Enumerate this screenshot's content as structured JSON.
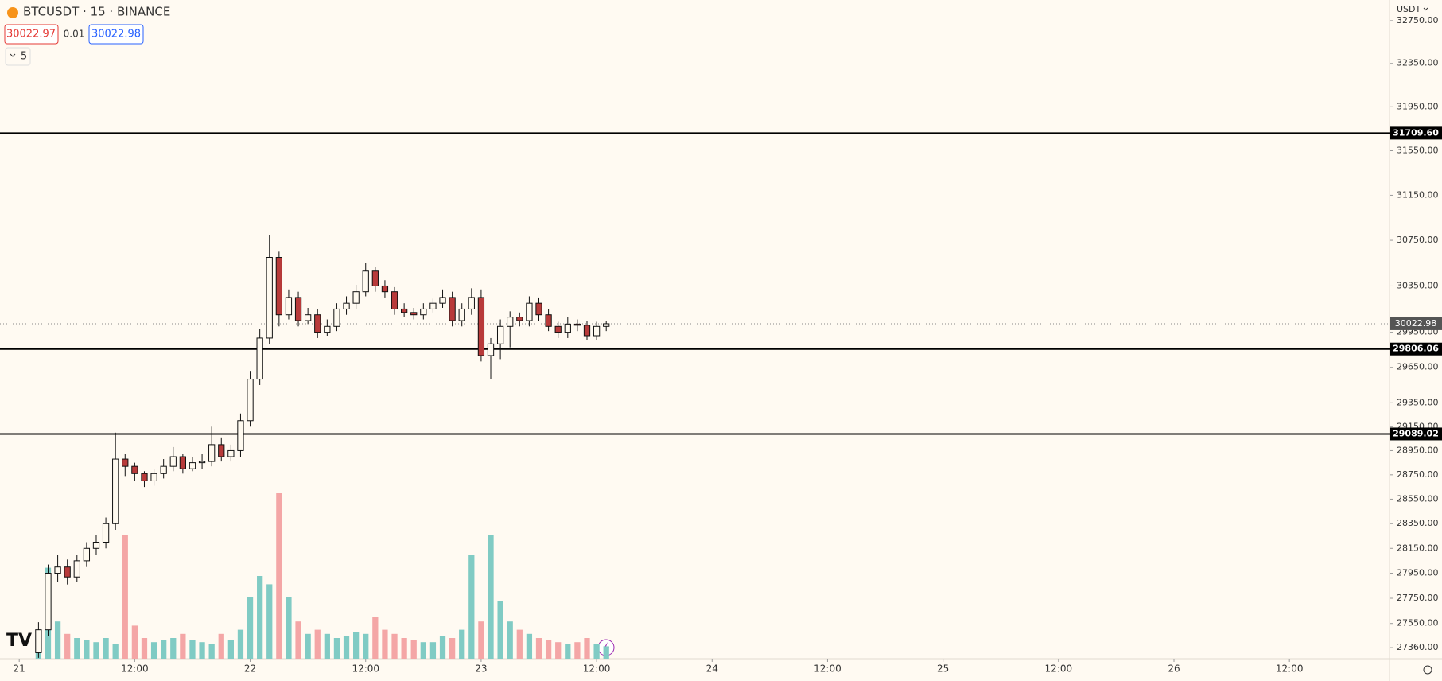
{
  "header": {
    "symbol": "BTCUSDT · 15 · BINANCE",
    "sell": "30022.97",
    "spread": "0.01",
    "buy": "30022.98",
    "indicators": "5",
    "currency": "USDT"
  },
  "chart_data": {
    "type": "candlestick",
    "log_scale": true,
    "x": [
      "21 02:00",
      "21 03:00",
      "21 04:00",
      "21 05:00",
      "21 06:00",
      "21 07:00",
      "21 08:00",
      "21 09:00",
      "21 10:00",
      "21 11:00",
      "21 12:00",
      "21 13:00",
      "21 14:00",
      "21 15:00",
      "21 16:00",
      "21 17:00",
      "21 18:00",
      "21 19:00",
      "21 20:00",
      "21 21:00",
      "21 22:00",
      "21 23:00",
      "22 00:00",
      "22 01:00",
      "22 02:00",
      "22 03:00",
      "22 04:00",
      "22 05:00",
      "22 06:00",
      "22 07:00",
      "22 08:00",
      "22 09:00",
      "22 10:00",
      "22 11:00",
      "22 12:00",
      "22 13:00",
      "22 14:00",
      "22 15:00",
      "22 16:00",
      "22 17:00",
      "22 18:00",
      "22 19:00",
      "22 20:00",
      "22 21:00",
      "22 22:00",
      "22 23:00",
      "23 00:00",
      "23 01:00",
      "23 02:00",
      "23 03:00",
      "23 04:00",
      "23 05:00",
      "23 06:00",
      "23 07:00",
      "23 08:00",
      "23 09:00",
      "23 10:00",
      "23 11:00",
      "23 12:00",
      "23 13:00"
    ],
    "open": [
      27320,
      27500,
      27950,
      28000,
      27920,
      28050,
      28150,
      28200,
      28350,
      28880,
      28820,
      28760,
      28700,
      28760,
      28820,
      28900,
      28800,
      28850,
      28860,
      29000,
      28900,
      28950,
      29200,
      29550,
      29900,
      30600,
      30100,
      30250,
      30050,
      30100,
      29950,
      30000,
      30150,
      30200,
      30300,
      30480,
      30350,
      30300,
      30150,
      30120,
      30100,
      30150,
      30200,
      30250,
      30050,
      30150,
      30250,
      29750,
      29850,
      30000,
      30080,
      30050,
      30200,
      30100,
      30000,
      29950,
      30020,
      30010,
      29920,
      30000
    ],
    "high": [
      27560,
      28020,
      28100,
      28060,
      28100,
      28200,
      28260,
      28400,
      29100,
      28920,
      28850,
      28780,
      28800,
      28880,
      28980,
      28920,
      28900,
      28920,
      29150,
      29060,
      29000,
      29260,
      29620,
      29980,
      30800,
      30650,
      30320,
      30300,
      30160,
      30150,
      30060,
      30200,
      30260,
      30360,
      30550,
      30520,
      30400,
      30340,
      30200,
      30160,
      30200,
      30240,
      30320,
      30300,
      30200,
      30330,
      30320,
      29900,
      30060,
      30130,
      30120,
      30260,
      30250,
      30150,
      30040,
      30080,
      30060,
      30050,
      30040,
      30050
    ],
    "low": [
      27280,
      27450,
      27880,
      27860,
      27880,
      28000,
      28100,
      28150,
      28300,
      28740,
      28700,
      28650,
      28660,
      28720,
      28780,
      28760,
      28780,
      28800,
      28820,
      28860,
      28860,
      28900,
      29150,
      29500,
      29850,
      30000,
      30060,
      30000,
      30020,
      29900,
      29920,
      29960,
      30100,
      30150,
      30260,
      30300,
      30250,
      30100,
      30080,
      30060,
      30060,
      30120,
      30160,
      30000,
      30000,
      30100,
      29700,
      29550,
      29720,
      29820,
      30000,
      30000,
      30050,
      29960,
      29900,
      29900,
      29960,
      29880,
      29880,
      29960
    ],
    "close": [
      27500,
      27950,
      28000,
      27920,
      28050,
      28150,
      28200,
      28350,
      28880,
      28820,
      28760,
      28700,
      28760,
      28820,
      28900,
      28800,
      28850,
      28860,
      29000,
      28900,
      28950,
      29200,
      29550,
      29900,
      30600,
      30100,
      30250,
      30050,
      30100,
      29950,
      30000,
      30150,
      30200,
      30300,
      30480,
      30350,
      30300,
      30150,
      30120,
      30100,
      30150,
      30200,
      30250,
      30050,
      30150,
      30250,
      29750,
      29850,
      30000,
      30080,
      30050,
      30200,
      30100,
      30000,
      29950,
      30020,
      30010,
      29920,
      30000,
      30022.98
    ],
    "volume": [
      300,
      2200,
      900,
      600,
      500,
      450,
      400,
      500,
      350,
      3000,
      800,
      500,
      400,
      450,
      500,
      600,
      450,
      400,
      350,
      600,
      450,
      700,
      1500,
      2000,
      1800,
      4000,
      1500,
      900,
      600,
      700,
      600,
      500,
      550,
      650,
      600,
      1000,
      700,
      600,
      500,
      450,
      400,
      400,
      550,
      500,
      700,
      2500,
      900,
      3000,
      1400,
      900,
      700,
      600,
      500,
      450,
      400,
      350,
      400,
      500,
      350,
      300
    ],
    "volume_ylim": [
      0,
      4000
    ],
    "up_color": "#fffaf0",
    "down_color": "#b83a3a",
    "volume_up_color": "#80cbc4",
    "volume_down_color": "#f4a6a6",
    "ylim": [
      27273,
      32944
    ],
    "yticks": [
      {
        "value": 27360,
        "label": "27360.00"
      },
      {
        "value": 27550,
        "label": "27550.00"
      },
      {
        "value": 27750,
        "label": "27750.00"
      },
      {
        "value": 27950,
        "label": "27950.00"
      },
      {
        "value": 28150,
        "label": "28150.00"
      },
      {
        "value": 28350,
        "label": "28350.00"
      },
      {
        "value": 28550,
        "label": "28550.00"
      },
      {
        "value": 28750,
        "label": "28750.00"
      },
      {
        "value": 28950,
        "label": "28950.00"
      },
      {
        "value": 29150,
        "label": "29150.00"
      },
      {
        "value": 29350,
        "label": "29350.00"
      },
      {
        "value": 29650,
        "label": "29650.00"
      },
      {
        "value": 29950,
        "label": "29950.00"
      },
      {
        "value": 30350,
        "label": "30350.00"
      },
      {
        "value": 30750,
        "label": "30750.00"
      },
      {
        "value": 31150,
        "label": "31150.00"
      },
      {
        "value": 31550,
        "label": "31550.00"
      },
      {
        "value": 31950,
        "label": "31950.00"
      },
      {
        "value": 32350,
        "label": "32350.00"
      },
      {
        "value": 32750,
        "label": "32750.00"
      }
    ],
    "xlim": [
      "20 22:00",
      "26 22:24"
    ],
    "xticks": [
      {
        "value": "21 00:00",
        "label": "21"
      },
      {
        "value": "21 12:00",
        "label": "12:00"
      },
      {
        "value": "22 00:00",
        "label": "22"
      },
      {
        "value": "22 12:00",
        "label": "12:00"
      },
      {
        "value": "23 00:00",
        "label": "23"
      },
      {
        "value": "23 12:00",
        "label": "12:00"
      },
      {
        "value": "24 00:00",
        "label": "24"
      },
      {
        "value": "24 12:00",
        "label": "12:00"
      },
      {
        "value": "25 00:00",
        "label": "25"
      },
      {
        "value": "25 12:00",
        "label": "12:00"
      },
      {
        "value": "26 00:00",
        "label": "26"
      },
      {
        "value": "26 12:00",
        "label": "12:00"
      }
    ],
    "levels": [
      {
        "value": 31709.6,
        "label": "31709.60"
      },
      29806.06,
      29089.02
    ],
    "last_price": 30022.98
  }
}
